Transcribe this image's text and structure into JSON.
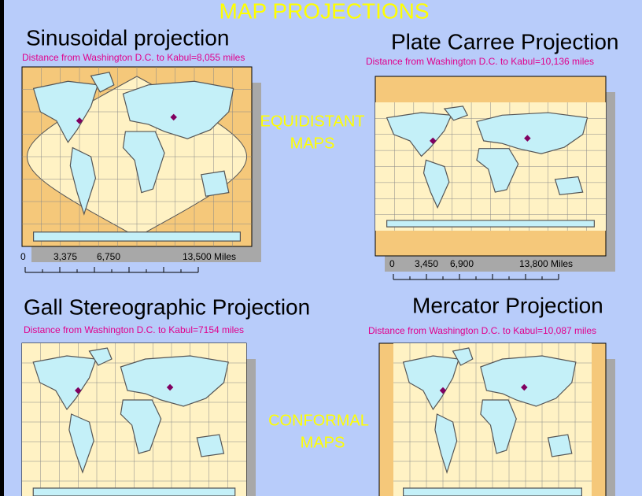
{
  "header": {
    "title": "MAP PROJECTIONS"
  },
  "panels": [
    {
      "title": "Sinusoidal projection",
      "distance": "Distance from Washington D.C. to Kabul=8,055 miles",
      "scale_labels": [
        "0",
        "3,375",
        "6,750",
        "13,500 Miles"
      ]
    },
    {
      "title": "Plate Carree Projection",
      "distance": "Distance from Washington D.C. to Kabul=10,136 miles",
      "scale_labels": [
        "0",
        "3,450",
        "6,900",
        "13,800 Miles"
      ]
    },
    {
      "title": "Gall Stereographic Projection",
      "distance": "Distance from Washington D.C. to Kabul=7154 miles"
    },
    {
      "title": "Mercator Projection",
      "distance": "Distance from Washington D.C. to Kabul=10,087 miles"
    }
  ],
  "group_labels": [
    {
      "lines": [
        "EQUIDISTANT",
        "MAPS"
      ]
    },
    {
      "lines": [
        "CONFORMAL",
        "MAPS"
      ]
    }
  ]
}
